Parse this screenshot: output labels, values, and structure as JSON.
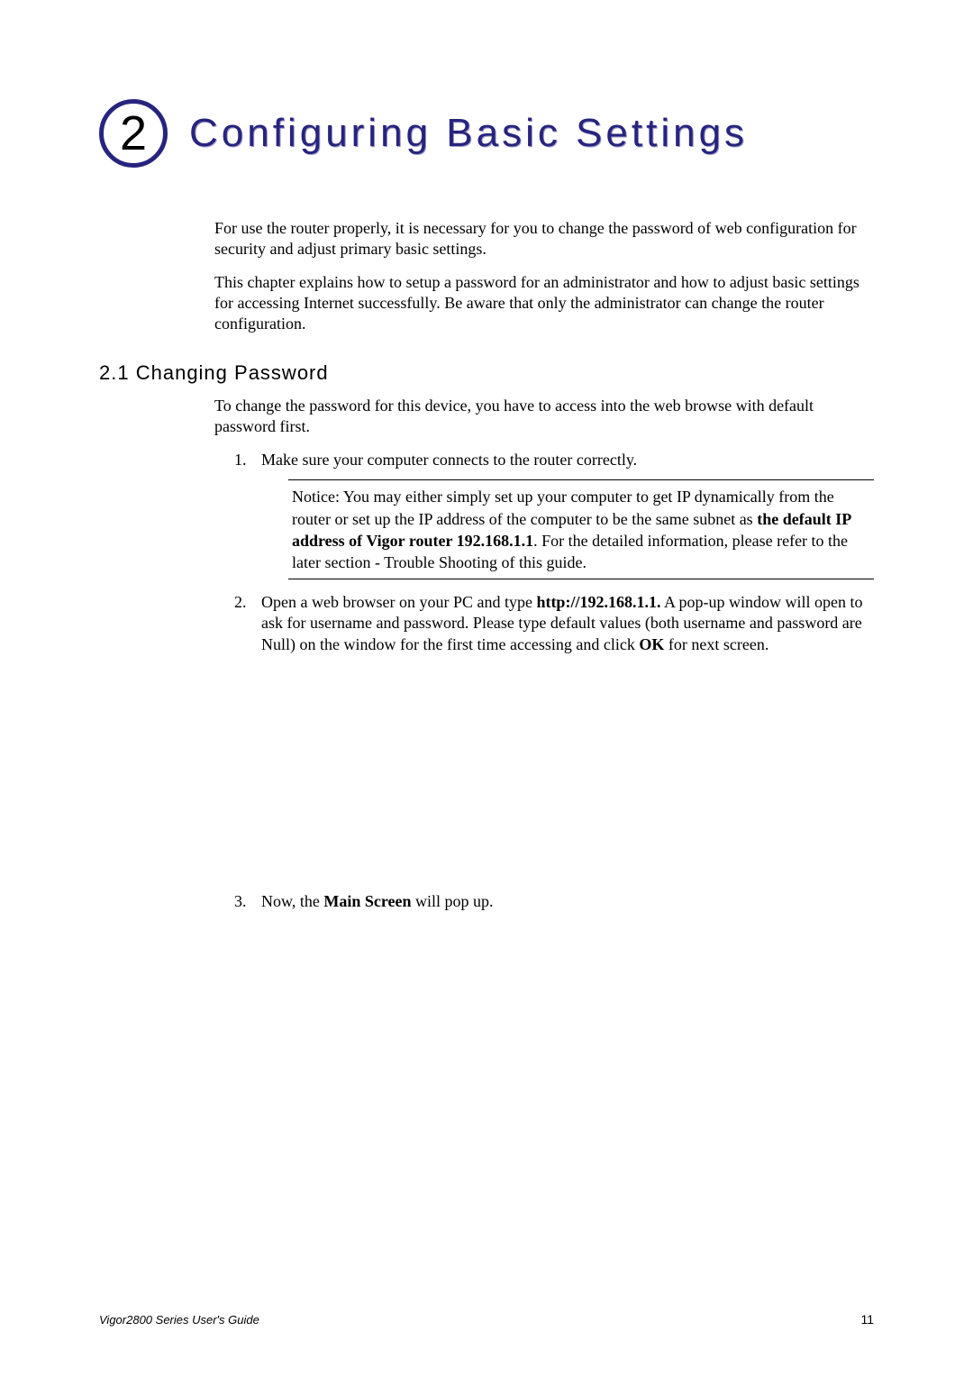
{
  "chapter": {
    "number": "2",
    "title": "Configuring Basic Settings",
    "badge_border_color": "#27247f",
    "title_color": "#27247f",
    "title_shadow_color": "#9a98c5",
    "title_fontsize": 44,
    "title_letter_spacing": 4
  },
  "intro": {
    "p1": "For use the router properly, it is necessary for you to change the password of web configuration for security and adjust primary basic settings.",
    "p2": "This chapter explains how to setup a password for an administrator and how to adjust basic settings for accessing Internet successfully. Be aware that only the administrator can change the router configuration."
  },
  "section": {
    "number": "2.1",
    "title": "Changing Password",
    "heading_fontsize": 22
  },
  "section_intro": "To change the password for this device, you have to access into the web browse with default password first.",
  "steps": {
    "s1_text": "Make sure your computer connects to the router correctly.",
    "notice_pre": "Notice: You may either simply set up your computer to get IP dynamically from the router or set up the IP address of the computer to be the same subnet as ",
    "notice_bold": "the default IP address of Vigor router 192.168.1.1",
    "notice_post": ". For the detailed information, please refer to the later section - Trouble Shooting of this guide.",
    "s2_pre": "Open a web browser on your PC and type ",
    "s2_url": "http://192.168.1.1.",
    "s2_mid": " A pop-up window will open to ask for username and password. Please type default values (both username and password are Null) on the window for the first time accessing and click ",
    "s2_ok": "OK",
    "s2_post": " for next screen.",
    "s3_pre": "Now, the ",
    "s3_bold": "Main Screen",
    "s3_post": " will pop up."
  },
  "footer": {
    "left": "Vigor2800 Series User's Guide",
    "page": "11"
  },
  "colors": {
    "text": "#000000",
    "background": "#ffffff",
    "accent": "#27247f"
  },
  "typography": {
    "body_font": "Times New Roman",
    "heading_font": "Arial",
    "body_fontsize": 18,
    "footer_fontsize": 13
  }
}
